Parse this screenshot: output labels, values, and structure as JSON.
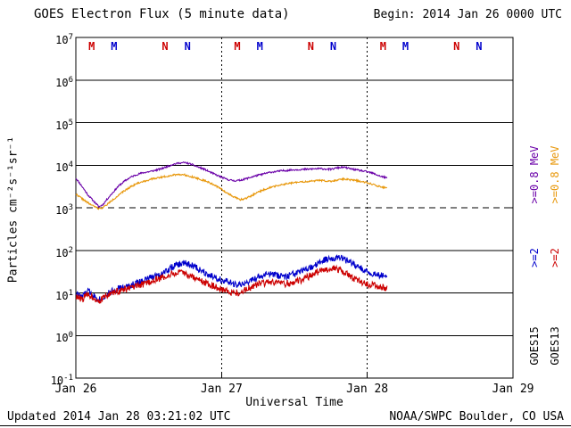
{
  "header": {
    "title": "GOES Electron Flux (5 minute data)",
    "begin_label": "Begin: 2014 Jan 26 0000 UTC"
  },
  "footer": {
    "updated": "Updated 2014 Jan 28 03:21:02 UTC",
    "source": "NOAA/SWPC Boulder, CO USA"
  },
  "chart_data": {
    "type": "line",
    "title": "GOES Electron Flux (5 minute data)",
    "xlabel": "Universal Time",
    "ylabel": "Particles cm⁻²s⁻¹sr⁻¹",
    "x_unit": "hours since 2014 Jan 26 0000 UTC",
    "xlim": [
      0,
      72
    ],
    "ylog": true,
    "y_exponents": [
      7,
      6,
      5,
      4,
      3,
      2,
      1,
      0,
      -1
    ],
    "dashed_line_exponent": 3,
    "grid_vertical_dotted_hours": [
      24,
      48
    ],
    "x_ticks": [
      {
        "hour": 0,
        "label": "Jan 26"
      },
      {
        "hour": 24,
        "label": "Jan 27"
      },
      {
        "hour": 48,
        "label": "Jan 28"
      },
      {
        "hour": 72,
        "label": "Jan 29"
      }
    ],
    "colors": {
      "goes15_08": "#6a00a8",
      "goes15_2": "#0000cc",
      "goes13_08": "#e8980c",
      "goes13_2": "#cc0000"
    },
    "local_time_markers": [
      {
        "hour": 2.6,
        "letter": "M",
        "sat": "GOES13"
      },
      {
        "hour": 6.3,
        "letter": "M",
        "sat": "GOES15"
      },
      {
        "hour": 14.7,
        "letter": "N",
        "sat": "GOES13"
      },
      {
        "hour": 18.4,
        "letter": "N",
        "sat": "GOES15"
      },
      {
        "hour": 26.6,
        "letter": "M",
        "sat": "GOES13"
      },
      {
        "hour": 30.3,
        "letter": "M",
        "sat": "GOES15"
      },
      {
        "hour": 38.7,
        "letter": "N",
        "sat": "GOES13"
      },
      {
        "hour": 42.4,
        "letter": "N",
        "sat": "GOES15"
      },
      {
        "hour": 50.6,
        "letter": "M",
        "sat": "GOES13"
      },
      {
        "hour": 54.3,
        "letter": "M",
        "sat": "GOES15"
      },
      {
        "hour": 62.7,
        "letter": "N",
        "sat": "GOES13"
      },
      {
        "hour": 66.4,
        "letter": "N",
        "sat": "GOES15"
      }
    ],
    "legend": {
      "columns": [
        {
          "satellite": "GOES15",
          "entries": [
            {
              "label": ">=0.8 MeV",
              "color_key": "goes15_08"
            },
            {
              "label": ">=2",
              "color_key": "goes15_2"
            }
          ]
        },
        {
          "satellite": "GOES13",
          "entries": [
            {
              "label": ">=0.8 MeV",
              "color_key": "goes13_08"
            },
            {
              "label": ">=2",
              "color_key": "goes13_2"
            }
          ]
        }
      ]
    },
    "series": [
      {
        "name": "GOES15 >=0.8 MeV",
        "color_key": "goes15_08",
        "seed": 11,
        "noise_log10": 0.02,
        "points": [
          [
            0,
            5000
          ],
          [
            1,
            3200
          ],
          [
            2,
            2000
          ],
          [
            3,
            1400
          ],
          [
            3.8,
            1050
          ],
          [
            4.5,
            1200
          ],
          [
            5,
            1500
          ],
          [
            6,
            2200
          ],
          [
            7,
            3200
          ],
          [
            8,
            4200
          ],
          [
            9,
            5200
          ],
          [
            10,
            6000
          ],
          [
            11,
            6600
          ],
          [
            12,
            7000
          ],
          [
            13,
            7500
          ],
          [
            14,
            8200
          ],
          [
            15,
            9200
          ],
          [
            16,
            10500
          ],
          [
            17,
            11200
          ],
          [
            18,
            11500
          ],
          [
            19,
            10500
          ],
          [
            20,
            9200
          ],
          [
            21,
            8200
          ],
          [
            22,
            7000
          ],
          [
            23,
            6000
          ],
          [
            24,
            5200
          ],
          [
            25,
            4600
          ],
          [
            26,
            4300
          ],
          [
            27,
            4400
          ],
          [
            28,
            4800
          ],
          [
            29,
            5300
          ],
          [
            30,
            5800
          ],
          [
            32,
            6800
          ],
          [
            34,
            7400
          ],
          [
            36,
            7800
          ],
          [
            38,
            8000
          ],
          [
            40,
            8300
          ],
          [
            42,
            8000
          ],
          [
            43,
            8600
          ],
          [
            44,
            9000
          ],
          [
            45,
            8400
          ],
          [
            46,
            7800
          ],
          [
            47,
            7400
          ],
          [
            48,
            7000
          ],
          [
            49,
            6400
          ],
          [
            50,
            5600
          ],
          [
            51.3,
            5000
          ]
        ]
      },
      {
        "name": "GOES13 >=0.8 MeV",
        "color_key": "goes13_08",
        "seed": 22,
        "noise_log10": 0.02,
        "points": [
          [
            0,
            2100
          ],
          [
            1,
            1650
          ],
          [
            2,
            1300
          ],
          [
            3,
            1080
          ],
          [
            3.8,
            950
          ],
          [
            4.5,
            1020
          ],
          [
            5,
            1150
          ],
          [
            6,
            1500
          ],
          [
            7,
            1950
          ],
          [
            8,
            2500
          ],
          [
            9,
            3100
          ],
          [
            10,
            3700
          ],
          [
            11,
            4100
          ],
          [
            12,
            4500
          ],
          [
            13,
            4900
          ],
          [
            14,
            5200
          ],
          [
            15,
            5500
          ],
          [
            16,
            5900
          ],
          [
            17,
            6100
          ],
          [
            18,
            5900
          ],
          [
            19,
            5400
          ],
          [
            20,
            4900
          ],
          [
            21,
            4400
          ],
          [
            22,
            3900
          ],
          [
            23,
            3300
          ],
          [
            24,
            2700
          ],
          [
            25,
            2200
          ],
          [
            26,
            1800
          ],
          [
            27,
            1550
          ],
          [
            28,
            1650
          ],
          [
            29,
            1950
          ],
          [
            30,
            2350
          ],
          [
            32,
            3000
          ],
          [
            34,
            3500
          ],
          [
            36,
            3900
          ],
          [
            38,
            4100
          ],
          [
            40,
            4400
          ],
          [
            42,
            4200
          ],
          [
            44,
            4700
          ],
          [
            46,
            4400
          ],
          [
            48,
            3900
          ],
          [
            49,
            3500
          ],
          [
            50,
            3150
          ],
          [
            51.3,
            2900
          ]
        ]
      },
      {
        "name": "GOES15 >=2 MeV",
        "color_key": "goes15_2",
        "seed": 33,
        "noise_log10": 0.08,
        "points": [
          [
            0,
            10
          ],
          [
            1,
            8
          ],
          [
            2,
            11
          ],
          [
            3,
            8.5
          ],
          [
            4,
            7
          ],
          [
            5,
            9
          ],
          [
            6,
            11
          ],
          [
            7,
            13
          ],
          [
            8,
            13
          ],
          [
            9,
            15
          ],
          [
            10,
            17
          ],
          [
            11,
            19
          ],
          [
            12,
            22
          ],
          [
            13,
            25
          ],
          [
            14,
            28
          ],
          [
            15,
            34
          ],
          [
            16,
            41
          ],
          [
            17,
            47
          ],
          [
            18,
            50
          ],
          [
            19,
            45
          ],
          [
            20,
            38
          ],
          [
            21,
            32
          ],
          [
            22,
            27
          ],
          [
            23,
            23
          ],
          [
            24,
            20
          ],
          [
            25,
            18
          ],
          [
            26,
            16
          ],
          [
            27,
            15
          ],
          [
            28,
            17
          ],
          [
            29,
            20
          ],
          [
            30,
            23
          ],
          [
            31,
            26
          ],
          [
            32,
            28
          ],
          [
            33,
            26
          ],
          [
            34,
            24
          ],
          [
            35,
            25
          ],
          [
            36,
            28
          ],
          [
            37,
            31
          ],
          [
            38,
            35
          ],
          [
            39,
            41
          ],
          [
            40,
            50
          ],
          [
            41,
            59
          ],
          [
            42,
            65
          ],
          [
            43,
            70
          ],
          [
            44,
            64
          ],
          [
            45,
            54
          ],
          [
            46,
            44
          ],
          [
            47,
            37
          ],
          [
            48,
            32
          ],
          [
            49,
            28
          ],
          [
            50,
            26
          ],
          [
            51.3,
            25
          ]
        ]
      },
      {
        "name": "GOES13 >=2 MeV",
        "color_key": "goes13_2",
        "seed": 44,
        "noise_log10": 0.08,
        "points": [
          [
            0,
            8
          ],
          [
            1,
            7
          ],
          [
            2,
            9.5
          ],
          [
            3,
            7.5
          ],
          [
            4,
            6.5
          ],
          [
            5,
            8.5
          ],
          [
            6,
            10
          ],
          [
            7,
            11
          ],
          [
            8,
            12
          ],
          [
            9,
            13
          ],
          [
            10,
            14
          ],
          [
            11,
            16
          ],
          [
            12,
            18
          ],
          [
            13,
            20
          ],
          [
            14,
            22
          ],
          [
            15,
            25
          ],
          [
            16,
            28
          ],
          [
            17,
            30
          ],
          [
            18,
            28
          ],
          [
            19,
            25
          ],
          [
            20,
            21
          ],
          [
            21,
            18
          ],
          [
            22,
            16
          ],
          [
            23,
            14
          ],
          [
            24,
            12
          ],
          [
            25,
            11
          ],
          [
            26,
            10
          ],
          [
            27,
            10
          ],
          [
            28,
            12
          ],
          [
            29,
            14
          ],
          [
            30,
            16
          ],
          [
            31,
            17
          ],
          [
            32,
            18
          ],
          [
            33,
            17
          ],
          [
            34,
            16
          ],
          [
            35,
            17
          ],
          [
            36,
            18
          ],
          [
            37,
            20
          ],
          [
            38,
            23
          ],
          [
            39,
            27
          ],
          [
            40,
            31
          ],
          [
            41,
            35
          ],
          [
            42,
            39
          ],
          [
            43,
            37
          ],
          [
            44,
            31
          ],
          [
            45,
            26
          ],
          [
            46,
            21
          ],
          [
            47,
            18
          ],
          [
            48,
            16
          ],
          [
            49,
            15
          ],
          [
            50,
            14
          ],
          [
            51.3,
            13
          ]
        ]
      }
    ]
  }
}
